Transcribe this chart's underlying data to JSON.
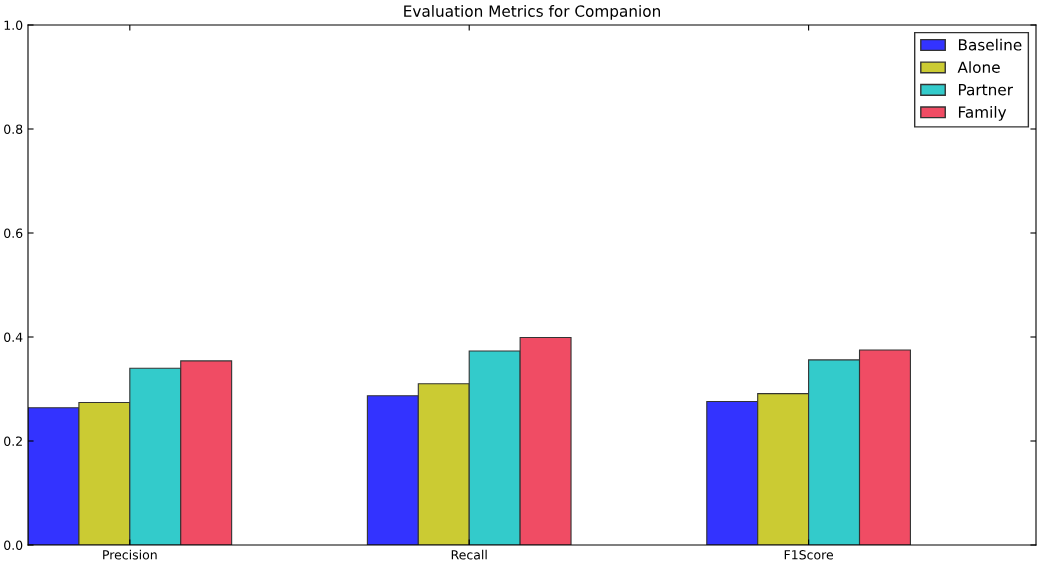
{
  "chart_data": {
    "type": "bar",
    "title": "Evaluation Metrics for Companion",
    "categories": [
      "Precision",
      "Recall",
      "F1Score"
    ],
    "series": [
      {
        "name": "Baseline",
        "color": "#3333ff",
        "values": [
          0.264,
          0.287,
          0.276
        ]
      },
      {
        "name": "Alone",
        "color": "#cbcb33",
        "values": [
          0.274,
          0.31,
          0.291
        ]
      },
      {
        "name": "Partner",
        "color": "#33cbcb",
        "values": [
          0.34,
          0.373,
          0.356
        ]
      },
      {
        "name": "Family",
        "color": "#f04c64",
        "values": [
          0.354,
          0.399,
          0.375
        ]
      }
    ],
    "ylim": [
      0,
      1
    ],
    "yticks": [
      {
        "value": 0,
        "label": "0.0"
      },
      {
        "value": 0.2,
        "label": "0.2"
      },
      {
        "value": 0.4,
        "label": "0.4"
      },
      {
        "value": 0.6,
        "label": "0.6"
      },
      {
        "value": 0.8,
        "label": "0.8"
      },
      {
        "value": 1,
        "label": "1.0"
      }
    ],
    "grid": false,
    "legend": "top right"
  }
}
